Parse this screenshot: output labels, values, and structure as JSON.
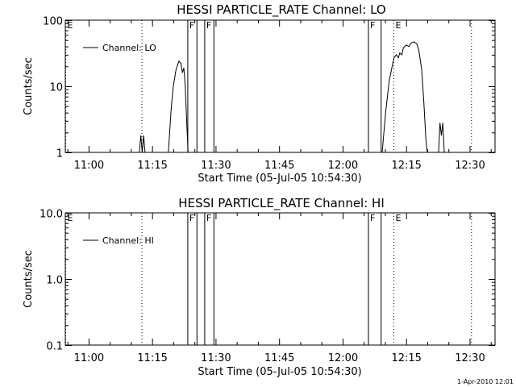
{
  "timestamp": "1-Apr-2010 12:01",
  "chart_data": [
    {
      "type": "line",
      "title": "HESSI PARTICLE_RATE Channel: LO",
      "xlabel": "Start Time (05-Jul-05 10:54:30)",
      "ylabel": "Counts/sec",
      "yscale": "log",
      "ylim": [
        1,
        100
      ],
      "xlim": [
        "10:54:30",
        "12:36:00"
      ],
      "xticks": [
        "11:00",
        "11:15",
        "11:30",
        "11:45",
        "12:00",
        "12:15",
        "12:30"
      ],
      "yticks": [
        "1",
        "10",
        "100"
      ],
      "legend": "top-left",
      "series": [
        {
          "name": "Channel: LO",
          "color": "#000000",
          "segments": [
            [
              [
                "11:12:00",
                1.0
              ],
              [
                "11:12:20",
                1.8
              ],
              [
                "11:12:40",
                1.0
              ],
              [
                "11:13:00",
                1.8
              ],
              [
                "11:13:20",
                1.0
              ]
            ],
            [
              [
                "11:18:50",
                1.0
              ],
              [
                "11:19:30",
                4.5
              ],
              [
                "11:20:00",
                10.0
              ],
              [
                "11:20:40",
                18.0
              ],
              [
                "11:21:20",
                24.0
              ],
              [
                "11:21:50",
                22.0
              ],
              [
                "11:22:10",
                16.0
              ],
              [
                "11:22:30",
                19.0
              ],
              [
                "11:22:50",
                10.0
              ],
              [
                "11:23:10",
                3.0
              ],
              [
                "11:23:30",
                1.0
              ]
            ],
            [
              [
                "12:09:20",
                1.0
              ],
              [
                "12:10:10",
                4.0
              ],
              [
                "12:11:00",
                12.0
              ],
              [
                "12:11:50",
                22.0
              ],
              [
                "12:12:10",
                27.0
              ],
              [
                "12:12:40",
                30.0
              ],
              [
                "12:13:10",
                27.0
              ],
              [
                "12:13:30",
                32.0
              ],
              [
                "12:14:00",
                30.0
              ],
              [
                "12:14:20",
                38.0
              ],
              [
                "12:15:00",
                42.0
              ],
              [
                "12:15:40",
                40.0
              ],
              [
                "12:16:10",
                45.0
              ],
              [
                "12:16:50",
                47.0
              ],
              [
                "12:17:30",
                44.0
              ],
              [
                "12:18:00",
                35.0
              ],
              [
                "12:18:40",
                18.0
              ],
              [
                "12:19:10",
                6.0
              ],
              [
                "12:19:40",
                1.6
              ],
              [
                "12:20:00",
                1.0
              ]
            ],
            [
              [
                "12:22:40",
                1.0
              ],
              [
                "12:23:00",
                2.8
              ],
              [
                "12:23:20",
                1.8
              ],
              [
                "12:23:40",
                2.8
              ],
              [
                "12:24:00",
                1.0
              ]
            ]
          ]
        }
      ],
      "flags": [
        {
          "label": "E",
          "time": "10:54:30",
          "style": "dotted"
        },
        {
          "label": "",
          "time": "11:12:30",
          "style": "dotted"
        },
        {
          "label": "F",
          "time": "11:23:20",
          "style": "solid"
        },
        {
          "label": "",
          "time": "11:25:30",
          "style": "solid"
        },
        {
          "label": "F",
          "time": "11:27:20",
          "style": "solid"
        },
        {
          "label": "",
          "time": "11:29:30",
          "style": "solid"
        },
        {
          "label": "F",
          "time": "12:06:00",
          "style": "solid"
        },
        {
          "label": "",
          "time": "12:09:00",
          "style": "solid"
        },
        {
          "label": "E",
          "time": "12:12:00",
          "style": "dotted"
        },
        {
          "label": "",
          "time": "12:30:20",
          "style": "dotted"
        }
      ]
    },
    {
      "type": "line",
      "title": "HESSI PARTICLE_RATE Channel: HI",
      "xlabel": "Start Time (05-Jul-05 10:54:30)",
      "ylabel": "Counts/sec",
      "yscale": "log",
      "ylim": [
        0.1,
        10
      ],
      "xlim": [
        "10:54:30",
        "12:36:00"
      ],
      "xticks": [
        "11:00",
        "11:15",
        "11:30",
        "11:45",
        "12:00",
        "12:15",
        "12:30"
      ],
      "yticks": [
        "0.1",
        "1.0",
        "10.0"
      ],
      "legend": "top-left",
      "series": [
        {
          "name": "Channel: HI",
          "color": "#000000",
          "segments": []
        }
      ],
      "flags": [
        {
          "label": "E",
          "time": "10:54:30",
          "style": "dotted"
        },
        {
          "label": "",
          "time": "11:12:30",
          "style": "dotted"
        },
        {
          "label": "F",
          "time": "11:23:20",
          "style": "solid"
        },
        {
          "label": "",
          "time": "11:25:30",
          "style": "solid"
        },
        {
          "label": "F",
          "time": "11:27:20",
          "style": "solid"
        },
        {
          "label": "",
          "time": "11:29:30",
          "style": "solid"
        },
        {
          "label": "F",
          "time": "12:06:00",
          "style": "solid"
        },
        {
          "label": "",
          "time": "12:09:00",
          "style": "solid"
        },
        {
          "label": "E",
          "time": "12:12:00",
          "style": "dotted"
        },
        {
          "label": "",
          "time": "12:30:20",
          "style": "dotted"
        }
      ]
    }
  ]
}
